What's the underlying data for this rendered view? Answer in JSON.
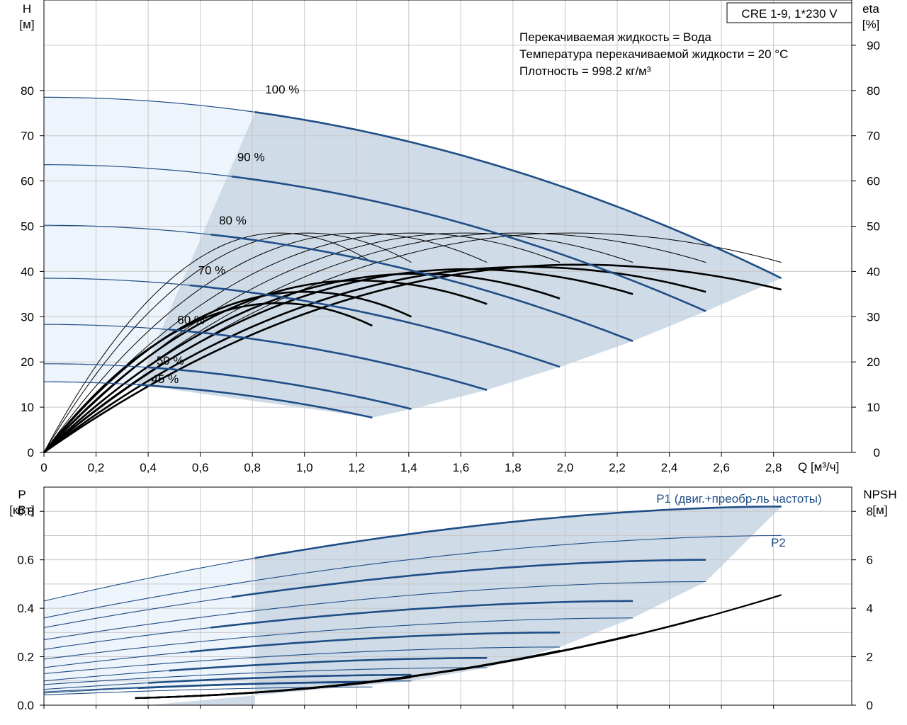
{
  "chart_data": [
    {
      "type": "line",
      "panel": "head-efficiency",
      "title_box": "CRE 1-9, 1*230 V",
      "ylabel_left": [
        "H",
        "[м]"
      ],
      "ylabel_right": [
        "eta",
        "[%]"
      ],
      "xlabel": "Q [м³/ч]",
      "xlim": [
        0,
        3.1
      ],
      "ylim": [
        0,
        100
      ],
      "xticks": [
        "0",
        "0,2",
        "0,4",
        "0,6",
        "0,8",
        "1,0",
        "1,2",
        "1,4",
        "1,6",
        "1,8",
        "2,0",
        "2,2",
        "2,4",
        "2,6",
        "2,8"
      ],
      "xtick_values": [
        0,
        0.2,
        0.4,
        0.6,
        0.8,
        1.0,
        1.2,
        1.4,
        1.6,
        1.8,
        2.0,
        2.2,
        2.4,
        2.6,
        2.8
      ],
      "yticks_left": [
        0,
        10,
        20,
        30,
        40,
        50,
        60,
        70,
        80
      ],
      "yticks_right": [
        0,
        10,
        20,
        30,
        40,
        50,
        60,
        70,
        80,
        90
      ],
      "info_lines": [
        "Перекачиваемая жидкость = Вода",
        "Температура перекачиваемой жидкости = 20 °C",
        "Плотность = 998.2 кг/м³"
      ],
      "speed_labels": [
        {
          "text": "100 %",
          "q": 0.92,
          "h": 80
        },
        {
          "text": "90 %",
          "q": 0.8,
          "h": 65
        },
        {
          "text": "80 %",
          "q": 0.73,
          "h": 51
        },
        {
          "text": "70 %",
          "q": 0.65,
          "h": 40
        },
        {
          "text": "60 %",
          "q": 0.57,
          "h": 29
        },
        {
          "text": "50 %",
          "q": 0.49,
          "h": 20
        },
        {
          "text": "45 %",
          "q": 0.47,
          "h": 16
        }
      ],
      "head_curves": [
        {
          "speed": "100 %",
          "h0": 78.5,
          "qmax": 2.83,
          "hend": 38.5,
          "qop": 0.81
        },
        {
          "speed": "90 %",
          "h0": 63.6,
          "qmax": 2.54,
          "hend": 31.2,
          "qop": 0.72
        },
        {
          "speed": "80 %",
          "h0": 50.2,
          "qmax": 2.26,
          "hend": 24.6,
          "qop": 0.64
        },
        {
          "speed": "70 %",
          "h0": 38.5,
          "qmax": 1.98,
          "hend": 18.9,
          "qop": 0.56
        },
        {
          "speed": "60 %",
          "h0": 28.3,
          "qmax": 1.7,
          "hend": 13.8,
          "qop": 0.48
        },
        {
          "speed": "50 %",
          "h0": 19.6,
          "qmax": 1.41,
          "hend": 9.6,
          "qop": 0.4
        },
        {
          "speed": "45 %",
          "h0": 15.6,
          "qmax": 1.26,
          "hend": 7.7,
          "qop": 0.36
        }
      ],
      "eff_bold_curves": [
        {
          "qmax": 2.83,
          "peak_q": 2.05,
          "peak": 41.5,
          "end": 36
        },
        {
          "qmax": 2.54,
          "peak_q": 1.85,
          "peak": 41.0,
          "end": 35.5
        },
        {
          "qmax": 2.26,
          "peak_q": 1.62,
          "peak": 40.5,
          "end": 35
        },
        {
          "qmax": 1.98,
          "peak_q": 1.43,
          "peak": 39.5,
          "end": 34
        },
        {
          "qmax": 1.7,
          "peak_q": 1.2,
          "peak": 38.0,
          "end": 32.8
        },
        {
          "qmax": 1.41,
          "peak_q": 1.0,
          "peak": 35.5,
          "end": 30
        },
        {
          "qmax": 1.26,
          "peak_q": 0.9,
          "peak": 33.0,
          "end": 28
        }
      ],
      "eff_thin_curves": [
        {
          "qmax": 2.83,
          "peak_q": 2.02,
          "peak": 48.5,
          "end": 42
        },
        {
          "qmax": 2.54,
          "peak_q": 1.81,
          "peak": 48.5,
          "end": 42
        },
        {
          "qmax": 2.26,
          "peak_q": 1.61,
          "peak": 48.5,
          "end": 42
        },
        {
          "qmax": 1.98,
          "peak_q": 1.41,
          "peak": 48.5,
          "end": 42
        },
        {
          "qmax": 1.7,
          "peak_q": 1.21,
          "peak": 48.5,
          "end": 42
        },
        {
          "qmax": 1.41,
          "peak_q": 1.01,
          "peak": 48.5,
          "end": 42
        },
        {
          "qmax": 1.26,
          "peak_q": 0.9,
          "peak": 48.5,
          "end": 42
        }
      ]
    },
    {
      "type": "line",
      "panel": "power-npsh",
      "ylabel_left": [
        "P",
        "[кВт]"
      ],
      "ylabel_right": [
        "NPSH",
        "[м]"
      ],
      "xlim": [
        0,
        3.1
      ],
      "ylim": [
        0,
        0.9
      ],
      "npsh_lim": [
        0,
        9
      ],
      "yticks_left": [
        "0.0",
        "0.2",
        "0.4",
        "0.6",
        "0.8"
      ],
      "yticks_left_values": [
        0,
        0.2,
        0.4,
        0.6,
        0.8
      ],
      "yticks_right": [
        "0",
        "2",
        "4",
        "6",
        "8"
      ],
      "yticks_right_values": [
        0,
        2,
        4,
        6,
        8
      ],
      "series_labels": [
        {
          "text": "P1 (двиг.+преобр-ль частоты)",
          "q": 2.35,
          "p": 0.835
        },
        {
          "text": "P2",
          "q": 2.79,
          "p": 0.655
        }
      ],
      "p1_curves": [
        {
          "qmax": 2.83,
          "p0": 0.43,
          "pend": 0.82,
          "qop": 0.81
        },
        {
          "qmax": 2.54,
          "p0": 0.32,
          "pend": 0.6,
          "qop": 0.72
        },
        {
          "qmax": 2.26,
          "p0": 0.23,
          "pend": 0.43,
          "qop": 0.64
        },
        {
          "qmax": 1.98,
          "p0": 0.155,
          "pend": 0.3,
          "qop": 0.56
        },
        {
          "qmax": 1.7,
          "p0": 0.1,
          "pend": 0.195,
          "qop": 0.48
        },
        {
          "qmax": 1.41,
          "p0": 0.065,
          "pend": 0.125,
          "qop": 0.4
        },
        {
          "qmax": 1.26,
          "p0": 0.05,
          "pend": 0.095,
          "qop": 0.36
        }
      ],
      "p2_curves": [
        {
          "qmax": 2.83,
          "p0": 0.36,
          "pend": 0.7
        },
        {
          "qmax": 2.54,
          "p0": 0.27,
          "pend": 0.51
        },
        {
          "qmax": 2.26,
          "p0": 0.19,
          "pend": 0.36
        },
        {
          "qmax": 1.98,
          "p0": 0.13,
          "pend": 0.24
        },
        {
          "qmax": 1.7,
          "p0": 0.085,
          "pend": 0.155
        },
        {
          "qmax": 1.41,
          "p0": 0.055,
          "pend": 0.1
        },
        {
          "qmax": 1.26,
          "p0": 0.042,
          "pend": 0.075
        }
      ],
      "npsh_curves": [
        {
          "qmax": 2.83,
          "end": 4.55
        },
        {
          "qmax": 2.54,
          "end": 3.65
        },
        {
          "qmax": 2.26,
          "end": 2.9
        },
        {
          "qmax": 1.98,
          "end": 2.25
        },
        {
          "qmax": 1.7,
          "end": 1.65
        },
        {
          "qmax": 1.41,
          "end": 1.15
        },
        {
          "qmax": 1.26,
          "end": 0.95
        }
      ]
    }
  ],
  "colors": {
    "curve_blue": "#1f4e86",
    "region_light": "#eef4fb",
    "region_shaded": "#cfdbe7",
    "grid": "#c8c8c8",
    "axis_text": "#000000"
  }
}
